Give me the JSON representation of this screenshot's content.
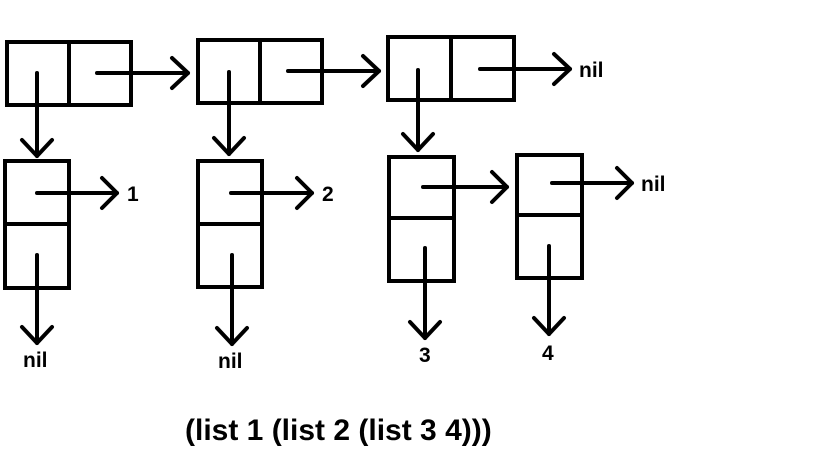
{
  "diagram": {
    "labels": {
      "nil_row1_end": "nil",
      "atom_1": "1",
      "atom_2": "2",
      "nil_row2_end": "nil",
      "nil_under_cell1": "nil",
      "nil_under_cell2": "nil",
      "atom_3": "3",
      "atom_4": "4"
    },
    "caption": "(list 1 (list 2 (list 3 4)))",
    "colors": {
      "stroke": "#000000",
      "background": "#ffffff"
    }
  }
}
